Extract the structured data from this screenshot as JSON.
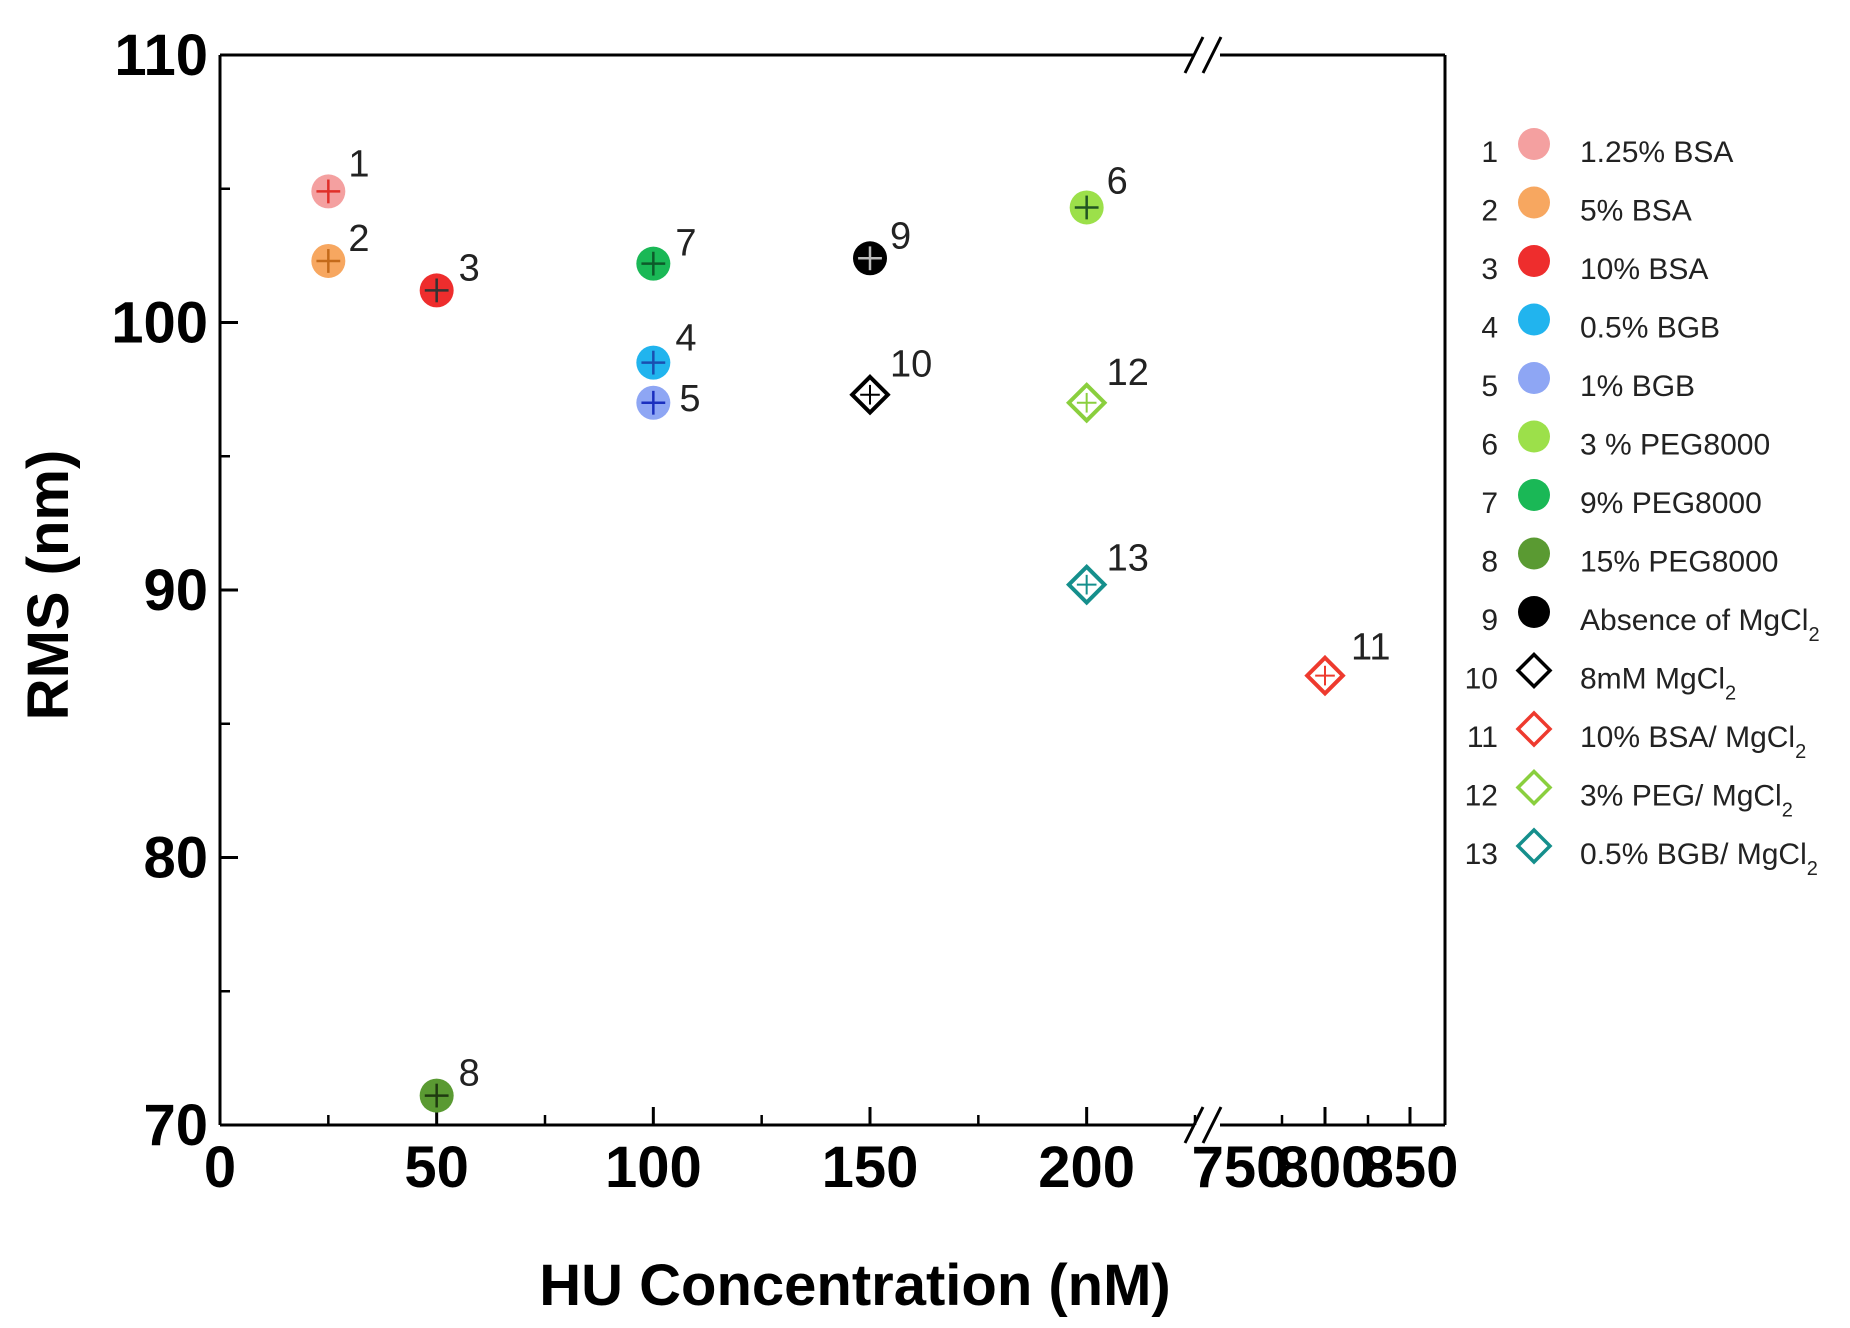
{
  "chart_data": {
    "type": "scatter",
    "title": "",
    "xlabel": "HU Concentration (nM)",
    "ylabel": "RMS (nm)",
    "ylim": [
      70,
      110
    ],
    "y_ticks": [
      "70",
      "80",
      "90",
      "100",
      "110"
    ],
    "x_segments": [
      {
        "range": [
          0,
          225
        ],
        "ticks": [
          "0",
          "50",
          "100",
          "150",
          "200"
        ]
      },
      {
        "range": [
          750,
          850
        ],
        "ticks": [
          "750",
          "800",
          "850"
        ]
      }
    ],
    "axis_break": "//",
    "grid": false,
    "legend_position": "right",
    "points": [
      {
        "id": "1",
        "x": 25,
        "y": 104.9,
        "label": "1.25% BSA",
        "sub": "",
        "marker": "circle",
        "color": "#f4a0a0",
        "cross": "#e0302a"
      },
      {
        "id": "2",
        "x": 25,
        "y": 102.3,
        "label": "5% BSA",
        "sub": "",
        "marker": "circle",
        "color": "#f7a760",
        "cross": "#c46a1a"
      },
      {
        "id": "3",
        "x": 50,
        "y": 101.2,
        "label": "10% BSA",
        "sub": "",
        "marker": "circle",
        "color": "#ee2d2d",
        "cross": "#333333"
      },
      {
        "id": "4",
        "x": 100,
        "y": 98.5,
        "label": "0.5% BGB",
        "sub": "",
        "marker": "circle",
        "color": "#21b4ee",
        "cross": "#1a4fb0"
      },
      {
        "id": "5",
        "x": 100,
        "y": 97.0,
        "label": "1% BGB",
        "sub": "",
        "marker": "circle",
        "color": "#8ea6f4",
        "cross": "#1a2fbf"
      },
      {
        "id": "6",
        "x": 200,
        "y": 104.3,
        "label": "3 % PEG8000",
        "sub": "",
        "marker": "circle",
        "color": "#9ce04a",
        "cross": "#225522"
      },
      {
        "id": "7",
        "x": 100,
        "y": 102.2,
        "label": "9% PEG8000",
        "sub": "",
        "marker": "circle",
        "color": "#1ab856",
        "cross": "#0d5a2a"
      },
      {
        "id": "8",
        "x": 50,
        "y": 71.1,
        "label": "15% PEG8000",
        "sub": "",
        "marker": "circle",
        "color": "#5a9a32",
        "cross": "#1f3a10"
      },
      {
        "id": "9",
        "x": 150,
        "y": 102.4,
        "label": "Absence of MgCl",
        "sub": "2",
        "marker": "circle",
        "color": "#000000",
        "cross": "#bbbbbb"
      },
      {
        "id": "10",
        "x": 150,
        "y": 97.3,
        "label": "8mM MgCl",
        "sub": "2",
        "marker": "diamond",
        "color": "#000000",
        "cross": "#000000"
      },
      {
        "id": "11",
        "x": 800,
        "y": 86.8,
        "label": "10% BSA/ MgCl",
        "sub": "2",
        "marker": "diamond",
        "color": "#ee3a2e",
        "cross": "#ee3a2e"
      },
      {
        "id": "12",
        "x": 200,
        "y": 97.0,
        "label": "3% PEG/ MgCl",
        "sub": "2",
        "marker": "diamond",
        "color": "#8acf3e",
        "cross": "#8acf3e"
      },
      {
        "id": "13",
        "x": 200,
        "y": 90.2,
        "label": "0.5% BGB/ MgCl",
        "sub": "2",
        "marker": "diamond",
        "color": "#158f8c",
        "cross": "#158f8c"
      }
    ]
  }
}
